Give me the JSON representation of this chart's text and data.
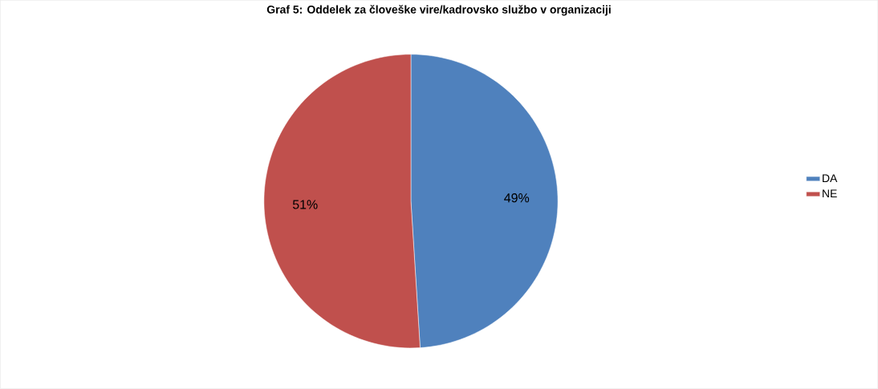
{
  "chart_data": {
    "type": "pie",
    "title": "Graf 5: Oddelek za človeške vire/kadrovsko službo v organizaciji",
    "categories": [
      "DA",
      "NE"
    ],
    "values": [
      49,
      51
    ],
    "colors": [
      "#4f81bd",
      "#c0504d"
    ],
    "value_labels": [
      "49%",
      "51%"
    ],
    "legend": "right"
  }
}
